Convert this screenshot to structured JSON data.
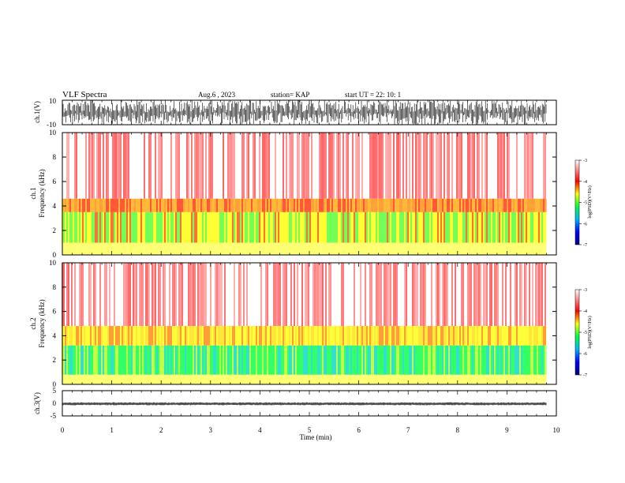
{
  "header": {
    "title": "VLF Spectra",
    "date": "Aug.6  , 2023",
    "station": "station= KAP",
    "start": "start  UT  =    22: 10: 1"
  },
  "chart_data": [
    {
      "type": "line",
      "panel": "waveform-ch1",
      "ylabel": "ch.1(V)",
      "ylim": [
        -10,
        10
      ],
      "y_ticks": [
        "10",
        "-10"
      ],
      "xlim": [
        0,
        10
      ],
      "note_values": "dense waveform filling roughly -10 to 10 V until ~9.8 min",
      "envelope": {
        "min": -10,
        "max": 10,
        "end_time": 9.8
      }
    },
    {
      "type": "heatmap",
      "panel": "spectrogram-ch1",
      "ylabel": "ch.1\nFrequency  (kHz)",
      "ylim": [
        0,
        10
      ],
      "y_ticks": [
        "0",
        "2",
        "4",
        "6",
        "8",
        "10"
      ],
      "xlim": [
        0,
        10
      ],
      "data_end_time": 9.8,
      "bands": [
        {
          "from_khz": 0.0,
          "to_khz": 1.0,
          "level": -4.2
        },
        {
          "from_khz": 1.0,
          "to_khz": 3.5,
          "level": -4.5
        },
        {
          "from_khz": 3.5,
          "to_khz": 4.6,
          "level": -4.0
        },
        {
          "from_khz": 4.6,
          "to_khz": 10.0,
          "level": -3.2
        }
      ],
      "colorbar": {
        "label": "log(PSD)(V²/Hz)",
        "ticks": [
          "-3",
          "-4",
          "-5",
          "-6",
          "-7"
        ],
        "range": [
          -7,
          -3
        ]
      }
    },
    {
      "type": "heatmap",
      "panel": "spectrogram-ch2",
      "ylabel": "ch.2\nFrequency  (kHz)",
      "ylim": [
        0,
        10
      ],
      "y_ticks": [
        "0",
        "2",
        "4",
        "6",
        "8",
        "10"
      ],
      "xlim": [
        0,
        10
      ],
      "data_end_time": 9.8,
      "bands": [
        {
          "from_khz": 0.0,
          "to_khz": 0.8,
          "level": -4.3
        },
        {
          "from_khz": 0.8,
          "to_khz": 3.2,
          "level": -5.0
        },
        {
          "from_khz": 3.2,
          "to_khz": 4.8,
          "level": -4.1
        },
        {
          "from_khz": 4.8,
          "to_khz": 10.0,
          "level": -3.2
        }
      ],
      "colorbar": {
        "label": "log(PSD)(V²/Hz)",
        "ticks": [
          "-3",
          "-4",
          "-5",
          "-6",
          "-7"
        ],
        "range": [
          -7,
          -3
        ]
      }
    },
    {
      "type": "line",
      "panel": "waveform-ch3",
      "ylabel": "ch.3(V)",
      "ylim": [
        -5,
        5
      ],
      "y_ticks": [
        "5",
        "0",
        "-5"
      ],
      "xlim": [
        0,
        10
      ],
      "envelope": {
        "min": -0.8,
        "max": 0.4,
        "end_time": 9.8
      }
    }
  ],
  "x_axis": {
    "label": "Time  (min)",
    "ticks": [
      "0",
      "1",
      "2",
      "3",
      "4",
      "5",
      "6",
      "7",
      "8",
      "9",
      "10"
    ]
  },
  "colors": {
    "background": "#ffffff",
    "waveform": "#000000",
    "colormap": [
      "#00007a",
      "#0000ff",
      "#00c8ff",
      "#00ff40",
      "#ffff00",
      "#ff0000",
      "#ffffff"
    ]
  }
}
